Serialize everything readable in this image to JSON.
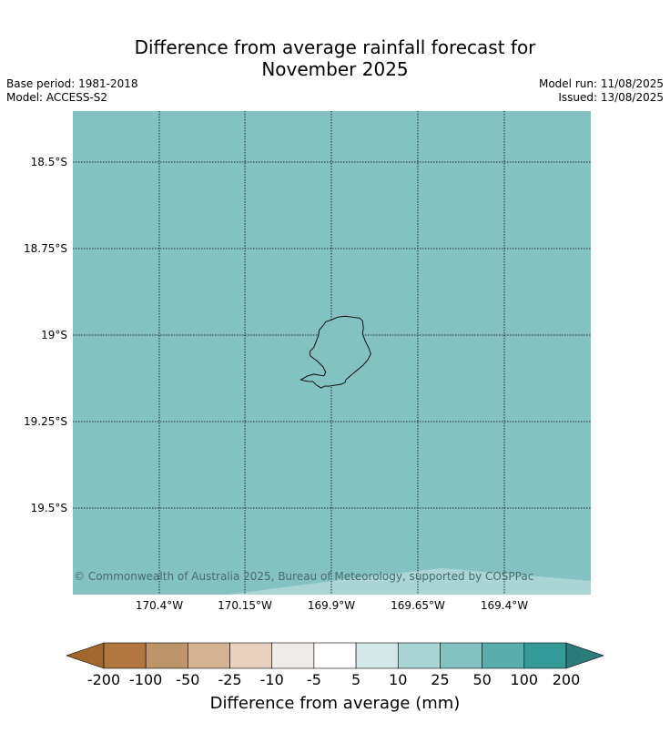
{
  "title": {
    "line1": "Difference from average rainfall forecast for",
    "line2": "November 2025"
  },
  "meta": {
    "base_period": "Base period: 1981-2018",
    "model": "Model: ACCESS-S2",
    "model_run": "Model run: 11/08/2025",
    "issued": "Issued: 13/08/2025"
  },
  "map": {
    "fill_color": "#84c1c1",
    "lower_band_color": "#aad5d4",
    "lat_labels": [
      "18.5°S",
      "18.75°S",
      "19°S",
      "19.25°S",
      "19.5°S"
    ],
    "lon_labels": [
      "170.4°W",
      "170.15°W",
      "169.9°W",
      "169.65°W",
      "169.4°W"
    ],
    "copyright": "© Commonwealth of Australia 2025, Bureau of Meteorology, supported by COSPPac"
  },
  "colorbar": {
    "ticks": [
      "-200",
      "-100",
      "-50",
      "-25",
      "-10",
      "-5",
      "5",
      "10",
      "25",
      "50",
      "100",
      "200"
    ],
    "colors": [
      "#b07840",
      "#c0946a",
      "#d4b394",
      "#e8d0bf",
      "#f0ecea",
      "#ffffff",
      "#d4e8e7",
      "#aad5d4",
      "#84c1c1",
      "#5bacac",
      "#369a99"
    ],
    "under_color": "#a0672f",
    "over_color": "#2a7b79",
    "label": "Difference from average (mm)"
  }
}
